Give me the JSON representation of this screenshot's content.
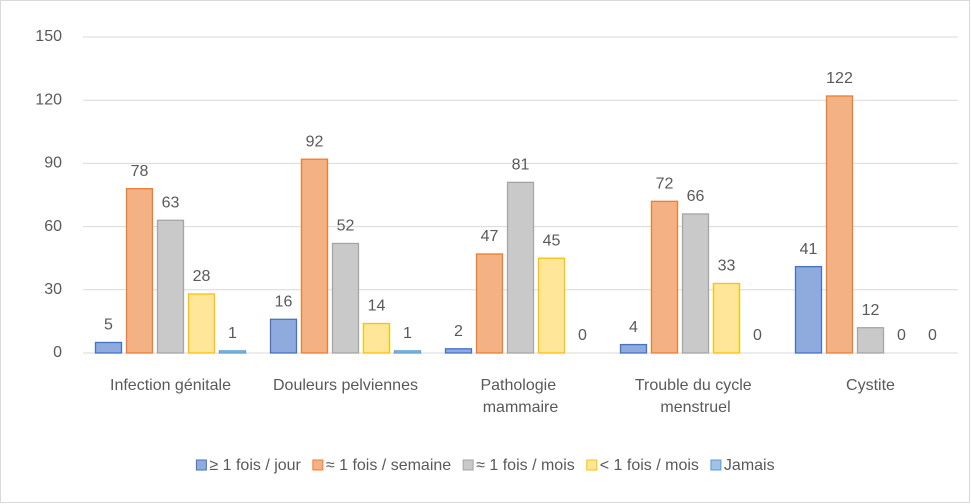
{
  "chart_data": {
    "type": "bar",
    "categories": [
      "Infection génitale",
      "Douleurs pelviennes",
      "Pathologie mammaire",
      "Trouble du cycle menstruel",
      "Cystite"
    ],
    "series": [
      {
        "name": "≥ 1 fois / jour",
        "color": "#8faadc",
        "edge": "#4472c4",
        "values": [
          5,
          16,
          2,
          4,
          41
        ]
      },
      {
        "name": "≈ 1 fois / semaine",
        "color": "#f4b183",
        "edge": "#ed7d31",
        "values": [
          78,
          92,
          47,
          72,
          122
        ]
      },
      {
        "name": "≈ 1 fois / mois",
        "color": "#c9c9c9",
        "edge": "#a5a5a5",
        "values": [
          63,
          52,
          81,
          66,
          12
        ]
      },
      {
        "name": "< 1 fois / mois",
        "color": "#ffe699",
        "edge": "#ffc000",
        "values": [
          28,
          14,
          45,
          33,
          0
        ]
      },
      {
        "name": "Jamais",
        "color": "#9dc3e6",
        "edge": "#5b9bd5",
        "values": [
          1,
          1,
          0,
          0,
          0
        ]
      }
    ],
    "ylim": [
      0,
      150
    ],
    "yticks": [
      0,
      30,
      60,
      90,
      120,
      150
    ],
    "grid": true,
    "legend": "bottom"
  }
}
